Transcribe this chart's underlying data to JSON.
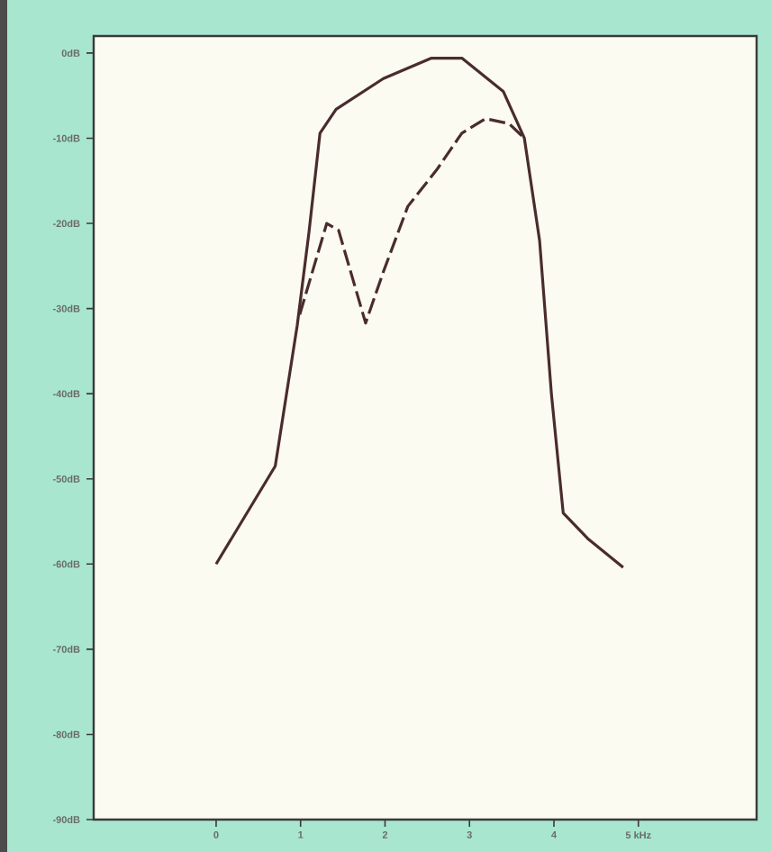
{
  "chart_data": {
    "type": "line",
    "xlim": [
      -1.45,
      6.4
    ],
    "ylim": [
      -90,
      2
    ],
    "xticks": [
      0,
      1,
      2,
      3,
      4,
      {
        "value": 5,
        "label": "5 kHz"
      }
    ],
    "yticks": [
      {
        "value": 0,
        "label": "0dB"
      },
      {
        "value": -10,
        "label": "-10dB"
      },
      {
        "value": -20,
        "label": "-20dB"
      },
      {
        "value": -30,
        "label": "-30dB"
      },
      {
        "value": -40,
        "label": "-40dB"
      },
      {
        "value": -50,
        "label": "-50dB"
      },
      {
        "value": -60,
        "label": "-60dB"
      },
      {
        "value": -70,
        "label": "-70dB"
      },
      {
        "value": -80,
        "label": "-80dB"
      },
      {
        "value": -90,
        "label": "-90dB"
      }
    ],
    "marker": "none",
    "series": [
      {
        "color": "#4a2c2c",
        "line_style": "solid",
        "x": [
          0,
          0.7,
          0.96,
          1.1,
          1.23,
          1.42,
          1.98,
          2.55,
          2.91,
          3.4,
          3.65,
          3.83,
          3.97,
          4.11,
          4.4,
          4.82
        ],
        "values": [
          -60,
          -48.5,
          -32,
          -21,
          -9.4,
          -6.6,
          -3,
          -0.6,
          -0.6,
          -4.5,
          -10,
          -22,
          -40,
          -54,
          -57,
          -60.4
        ]
      },
      {
        "color": "#4a2c2c",
        "line_style": "dashed",
        "x": [
          0.99,
          1.31,
          1.45,
          1.77,
          1.98,
          2.27,
          2.62,
          2.91,
          3.19,
          3.47,
          3.65
        ],
        "values": [
          -30.7,
          -20,
          -20.8,
          -31.7,
          -25.7,
          -18,
          -13.6,
          -9.4,
          -7.7,
          -8.3,
          -10
        ]
      }
    ]
  }
}
